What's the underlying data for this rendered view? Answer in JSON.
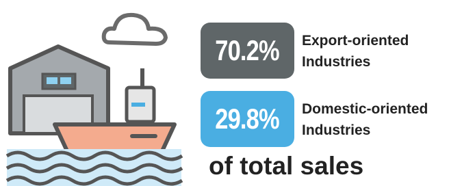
{
  "items": [
    {
      "value_label": "70.2%",
      "label": "Export-oriented Industries"
    },
    {
      "value_label": "29.8%",
      "label": "Domestic-oriented Industries"
    }
  ],
  "footer": "of total sales"
}
